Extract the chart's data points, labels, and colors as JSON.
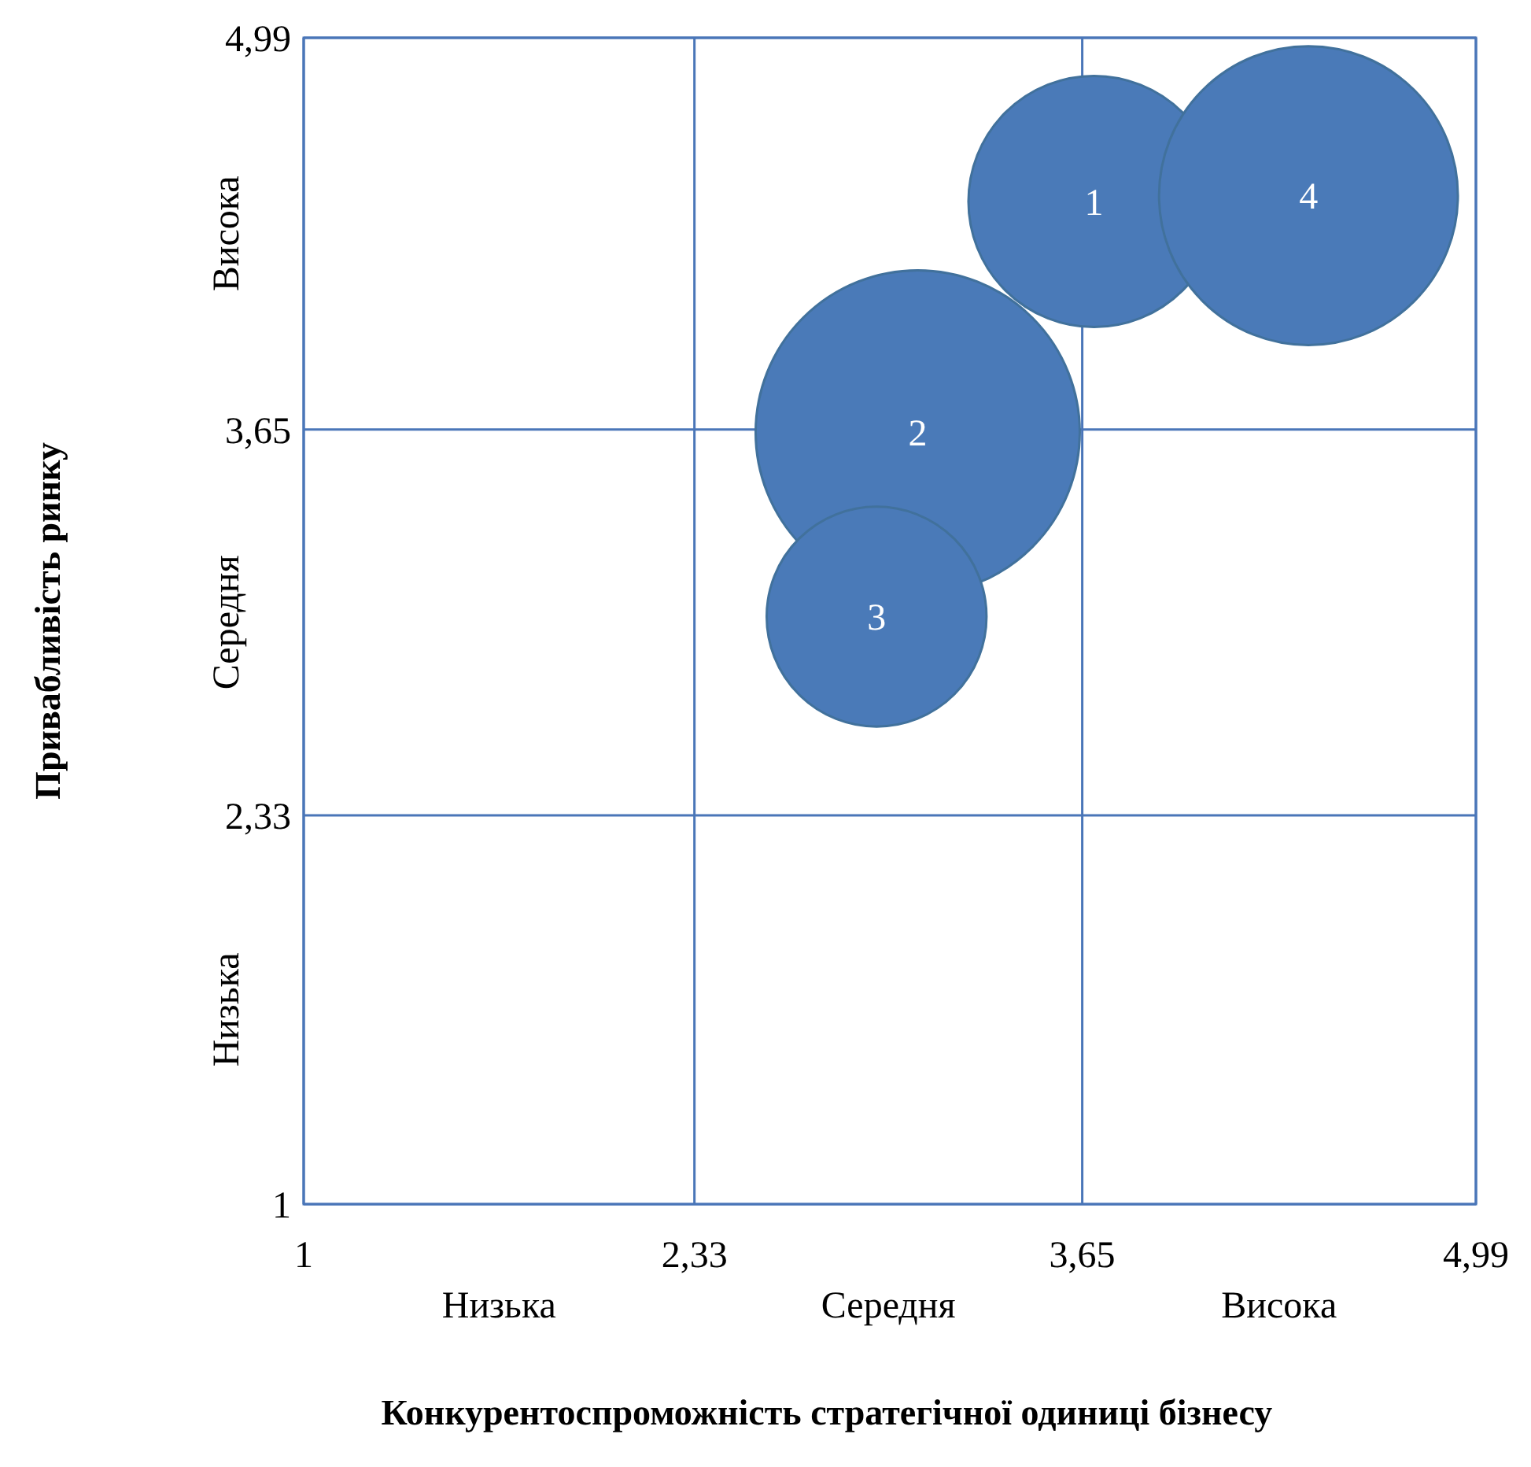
{
  "chart_data": {
    "type": "bubble",
    "xlabel": "Конкурентоспроможність стратегічної одиниці бізнесу",
    "ylabel": "Привабливість ринку",
    "x": [
      3.69,
      3.09,
      2.95,
      4.42
    ],
    "values": [
      4.43,
      3.64,
      3.01,
      4.45
    ],
    "sizes": [
      0.6,
      1,
      0.46,
      0.85
    ],
    "color": "#4a7ab8",
    "xlim": [
      1,
      4.99
    ],
    "ylim": [
      1,
      4.99
    ],
    "xticks": [
      1,
      {
        "value": 2.33,
        "label": "2,33"
      },
      {
        "value": 3.65,
        "label": "3,65"
      },
      {
        "value": 4.99,
        "label": "4,99"
      }
    ],
    "yticks": [
      1,
      {
        "value": 2.33,
        "label": "2,33"
      },
      {
        "value": 3.65,
        "label": "3,65"
      },
      {
        "value": 4.99,
        "label": "4,99"
      }
    ],
    "grid": true,
    "annotations": [
      "Низька",
      "Середня",
      "Висока",
      "Низька",
      "Середня",
      "Висока",
      {
        "text": "1",
        "x": 3.69,
        "y": 4.43
      },
      {
        "text": "2",
        "x": 3.09,
        "y": 3.64
      },
      {
        "text": "3",
        "x": 2.95,
        "y": 3.01
      },
      {
        "text": "4",
        "x": 4.42,
        "y": 4.45
      }
    ]
  }
}
